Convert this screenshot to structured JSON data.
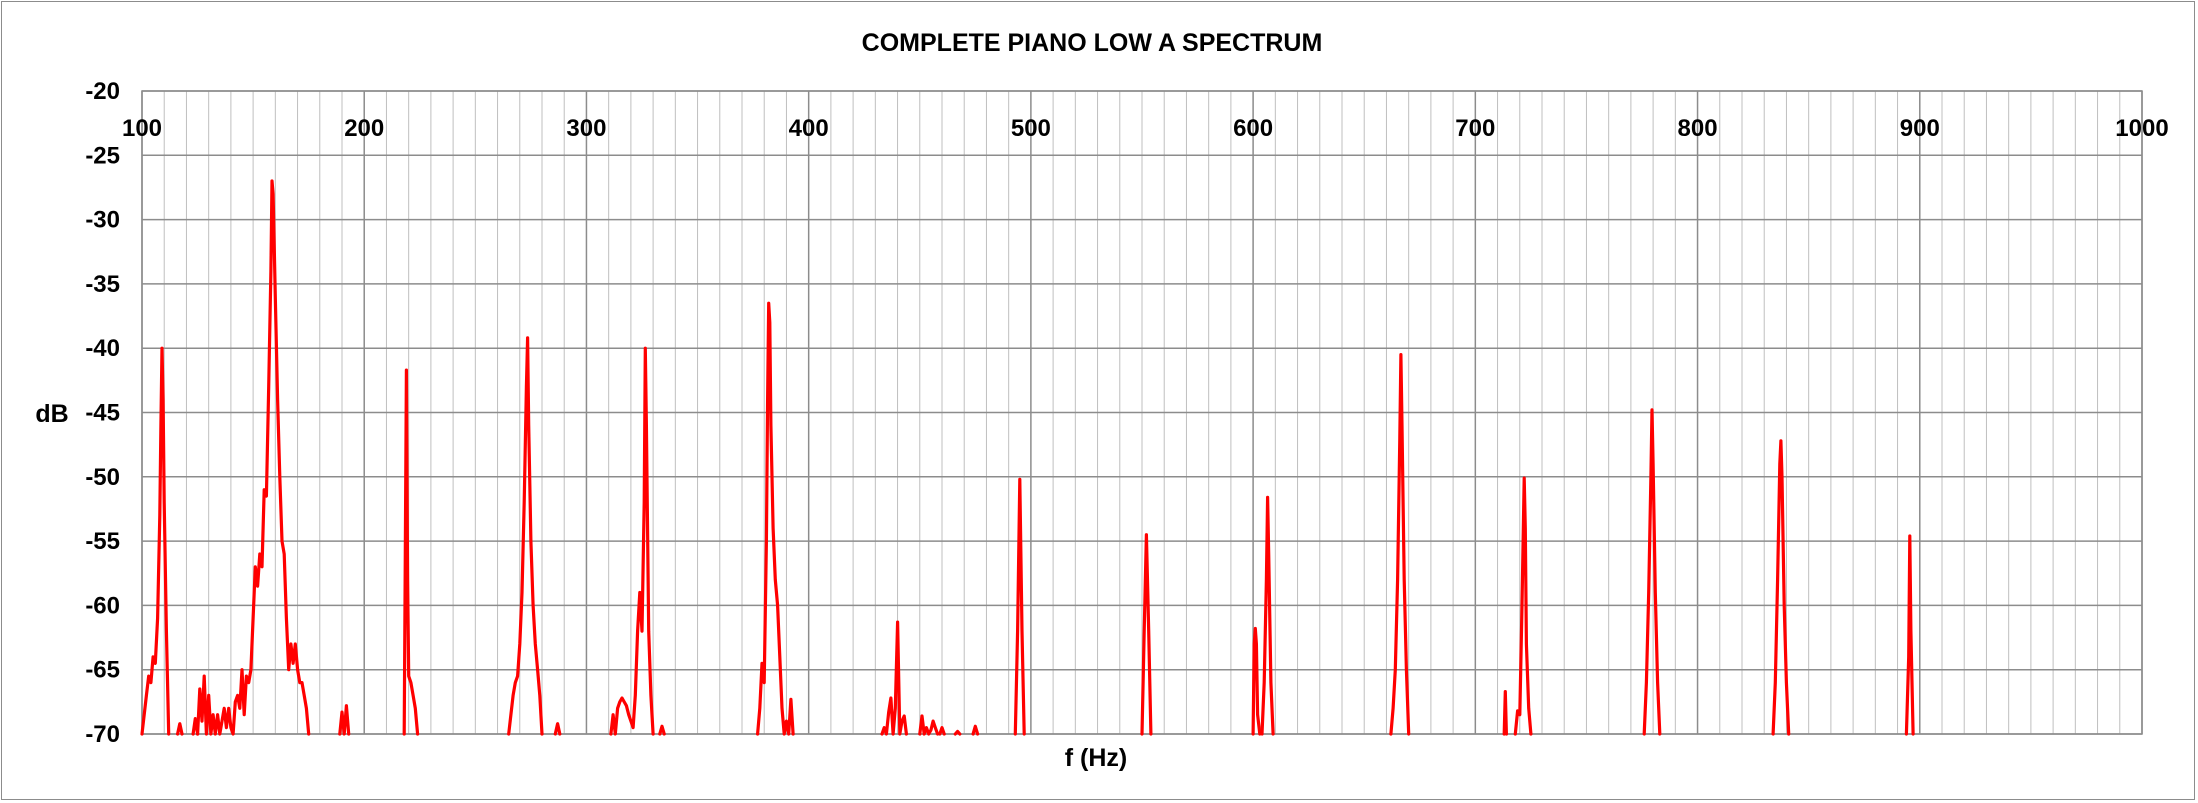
{
  "chart_data": {
    "type": "line",
    "title": "COMPLETE PIANO LOW A SPECTRUM",
    "xlabel": "f (Hz)",
    "ylabel": "dB",
    "xlim": [
      100,
      1000
    ],
    "ylim": [
      -70,
      -20
    ],
    "x_ticks": [
      100,
      200,
      300,
      400,
      500,
      600,
      700,
      800,
      900,
      1000
    ],
    "y_ticks": [
      -20,
      -25,
      -30,
      -35,
      -40,
      -45,
      -50,
      -55,
      -60,
      -65,
      -70
    ],
    "x_tick_labels": [
      "100",
      "200",
      "300",
      "400",
      "500",
      "600",
      "700",
      "800",
      "900",
      "1000"
    ],
    "y_tick_labels": [
      "-20",
      "-25",
      "-30",
      "-35",
      "-40",
      "-45",
      "-50",
      "-55",
      "-60",
      "-65",
      "-70"
    ],
    "x_minor_step": 10,
    "grid": true,
    "legend": "none",
    "series_color": "#ff0000",
    "grid_major_color": "#8c8c8c",
    "grid_minor_color": "#bfbfbf",
    "series": [
      {
        "segments": [
          [
            [
              100,
              -70
            ],
            [
              102,
              -67
            ],
            [
              103,
              -65.5
            ],
            [
              104,
              -66
            ],
            [
              105,
              -64
            ],
            [
              106,
              -64.5
            ],
            [
              107,
              -61
            ],
            [
              108,
              -53
            ],
            [
              108.5,
              -46
            ],
            [
              109,
              -40
            ],
            [
              109.5,
              -44
            ],
            [
              110,
              -52
            ],
            [
              111,
              -62
            ],
            [
              112,
              -70
            ]
          ],
          [
            [
              116,
              -70
            ],
            [
              117,
              -69.2
            ],
            [
              118,
              -70
            ]
          ],
          [
            [
              123,
              -70
            ],
            [
              124,
              -68.8
            ],
            [
              125,
              -70
            ]
          ],
          [
            [
              125,
              -70
            ],
            [
              126,
              -66.5
            ],
            [
              127,
              -69
            ],
            [
              128,
              -65.5
            ],
            [
              129,
              -70
            ],
            [
              130,
              -67
            ],
            [
              131,
              -70
            ],
            [
              132,
              -68.5
            ],
            [
              133,
              -70
            ],
            [
              134,
              -68.5
            ],
            [
              135,
              -70
            ],
            [
              136,
              -69
            ],
            [
              137,
              -68
            ],
            [
              138,
              -69.5
            ],
            [
              139,
              -68
            ],
            [
              140,
              -69.5
            ],
            [
              141,
              -70
            ],
            [
              142,
              -67.5
            ],
            [
              143,
              -67
            ],
            [
              144,
              -68
            ],
            [
              145,
              -65
            ],
            [
              146,
              -68.5
            ],
            [
              147,
              -65.5
            ],
            [
              148,
              -66
            ],
            [
              149,
              -65
            ],
            [
              150,
              -61
            ],
            [
              151,
              -57
            ],
            [
              152,
              -58.5
            ],
            [
              153,
              -56
            ],
            [
              154,
              -57
            ],
            [
              155,
              -51
            ],
            [
              156,
              -51.5
            ],
            [
              157,
              -43
            ],
            [
              158,
              -34
            ],
            [
              158.5,
              -27
            ],
            [
              159,
              -28
            ],
            [
              160,
              -36
            ],
            [
              161,
              -44
            ],
            [
              162,
              -50
            ],
            [
              163,
              -55
            ],
            [
              164,
              -56
            ],
            [
              165,
              -61
            ],
            [
              166,
              -65
            ],
            [
              167,
              -63
            ],
            [
              168,
              -64.5
            ],
            [
              169,
              -63
            ],
            [
              170,
              -65
            ],
            [
              171,
              -66
            ],
            [
              172,
              -66
            ],
            [
              173,
              -67
            ],
            [
              174,
              -68
            ],
            [
              175,
              -70
            ]
          ],
          [
            [
              189,
              -70
            ],
            [
              190,
              -68.3
            ],
            [
              191,
              -70
            ],
            [
              192,
              -67.8
            ],
            [
              193,
              -70
            ]
          ],
          [
            [
              218,
              -70
            ],
            [
              218.5,
              -56
            ],
            [
              219,
              -41.7
            ],
            [
              219.5,
              -58
            ],
            [
              220,
              -65.5
            ],
            [
              221,
              -66
            ],
            [
              222,
              -67
            ],
            [
              223,
              -68
            ],
            [
              224,
              -70
            ]
          ],
          [
            [
              265,
              -70
            ],
            [
              267,
              -67
            ],
            [
              268,
              -66
            ],
            [
              269,
              -65.5
            ],
            [
              270,
              -63
            ],
            [
              271,
              -59
            ],
            [
              272,
              -52
            ],
            [
              273,
              -43
            ],
            [
              273.5,
              -39.2
            ],
            [
              274,
              -46
            ],
            [
              275,
              -55
            ],
            [
              276,
              -60
            ],
            [
              277,
              -63
            ],
            [
              278,
              -65
            ],
            [
              279,
              -67
            ],
            [
              280,
              -70
            ]
          ],
          [
            [
              286,
              -70
            ],
            [
              287,
              -69.2
            ],
            [
              288,
              -70
            ]
          ],
          [
            [
              311,
              -70
            ],
            [
              312,
              -68.5
            ],
            [
              313,
              -70
            ],
            [
              314,
              -68
            ],
            [
              315,
              -67.5
            ],
            [
              316,
              -67.2
            ],
            [
              317,
              -67.5
            ],
            [
              318,
              -67.8
            ],
            [
              319,
              -68.5
            ],
            [
              320,
              -69
            ],
            [
              321,
              -69.5
            ],
            [
              322,
              -67
            ],
            [
              323,
              -62
            ],
            [
              324,
              -59
            ],
            [
              325,
              -62
            ],
            [
              326,
              -52
            ],
            [
              326.5,
              -40
            ],
            [
              327,
              -46
            ],
            [
              328,
              -62
            ],
            [
              329,
              -67
            ],
            [
              330,
              -70
            ]
          ],
          [
            [
              333,
              -70
            ],
            [
              334,
              -69.4
            ],
            [
              335,
              -70
            ]
          ],
          [
            [
              377,
              -70
            ],
            [
              378,
              -68
            ],
            [
              379,
              -64.5
            ],
            [
              380,
              -66
            ],
            [
              381,
              -55
            ],
            [
              381.5,
              -44
            ],
            [
              382,
              -36.5
            ],
            [
              382.5,
              -38
            ],
            [
              383,
              -46
            ],
            [
              384,
              -54
            ],
            [
              385,
              -58
            ],
            [
              386,
              -60
            ],
            [
              387,
              -64
            ],
            [
              388,
              -68
            ],
            [
              389,
              -70
            ],
            [
              390,
              -69
            ],
            [
              391,
              -70
            ],
            [
              392,
              -67.3
            ],
            [
              393,
              -70
            ]
          ],
          [
            [
              433,
              -70
            ],
            [
              434,
              -69.5
            ],
            [
              435,
              -70
            ],
            [
              436,
              -68.3
            ],
            [
              437,
              -67.2
            ],
            [
              438,
              -70
            ],
            [
              439,
              -68
            ],
            [
              440,
              -61.3
            ],
            [
              441,
              -70
            ],
            [
              442,
              -69
            ],
            [
              443,
              -68.6
            ],
            [
              444,
              -70
            ]
          ],
          [
            [
              450,
              -70
            ],
            [
              451,
              -68.6
            ],
            [
              452,
              -70
            ],
            [
              453,
              -69.5
            ],
            [
              454,
              -70
            ],
            [
              455,
              -69.7
            ],
            [
              456,
              -69
            ],
            [
              457,
              -69.5
            ],
            [
              458,
              -70
            ]
          ],
          [
            [
              459,
              -70
            ],
            [
              460,
              -69.5
            ],
            [
              461,
              -70
            ]
          ],
          [
            [
              466,
              -70
            ],
            [
              467,
              -69.8
            ],
            [
              468,
              -70
            ]
          ],
          [
            [
              474,
              -70
            ],
            [
              475,
              -69.4
            ],
            [
              476,
              -70
            ]
          ],
          [
            [
              493,
              -70
            ],
            [
              494,
              -62
            ],
            [
              495,
              -50.2
            ],
            [
              496,
              -62
            ],
            [
              497,
              -70
            ]
          ],
          [
            [
              550,
              -70
            ],
            [
              551,
              -62
            ],
            [
              552,
              -54.5
            ],
            [
              553,
              -62
            ],
            [
              554,
              -70
            ]
          ],
          [
            [
              600,
              -70
            ],
            [
              600.5,
              -63
            ],
            [
              601,
              -61.8
            ],
            [
              601.5,
              -63
            ],
            [
              602,
              -68.5
            ],
            [
              603,
              -70
            ]
          ],
          [
            [
              604,
              -70
            ],
            [
              605,
              -66
            ],
            [
              606,
              -58
            ],
            [
              606.5,
              -51.6
            ],
            [
              607,
              -56
            ],
            [
              608,
              -66
            ],
            [
              609,
              -70
            ]
          ],
          [
            [
              662,
              -70
            ],
            [
              663,
              -68
            ],
            [
              664,
              -65
            ],
            [
              665,
              -58
            ],
            [
              666,
              -47
            ],
            [
              666.5,
              -40.5
            ],
            [
              667,
              -46
            ],
            [
              668,
              -58
            ],
            [
              669,
              -65
            ],
            [
              670,
              -70
            ]
          ],
          [
            [
              713,
              -70
            ],
            [
              713.5,
              -66.7
            ],
            [
              714,
              -70
            ]
          ],
          [
            [
              718,
              -70
            ],
            [
              719,
              -68.2
            ],
            [
              720,
              -68.5
            ],
            [
              721,
              -60
            ],
            [
              722,
              -50.1
            ],
            [
              722.5,
              -54
            ],
            [
              723,
              -63
            ],
            [
              724,
              -68
            ],
            [
              725,
              -70
            ]
          ],
          [
            [
              776,
              -70
            ],
            [
              777,
              -66
            ],
            [
              778,
              -59
            ],
            [
              779,
              -50
            ],
            [
              779.5,
              -44.8
            ],
            [
              780,
              -49
            ],
            [
              781,
              -59
            ],
            [
              782,
              -66
            ],
            [
              783,
              -70
            ]
          ],
          [
            [
              834,
              -70
            ],
            [
              835,
              -66
            ],
            [
              836,
              -58
            ],
            [
              837,
              -49
            ],
            [
              837.5,
              -47.2
            ],
            [
              838,
              -50
            ],
            [
              839,
              -60
            ],
            [
              840,
              -66
            ],
            [
              841,
              -70
            ]
          ],
          [
            [
              894,
              -70
            ],
            [
              895,
              -64
            ],
            [
              895.5,
              -54.6
            ],
            [
              896,
              -62
            ],
            [
              897,
              -70
            ]
          ]
        ]
      }
    ]
  }
}
